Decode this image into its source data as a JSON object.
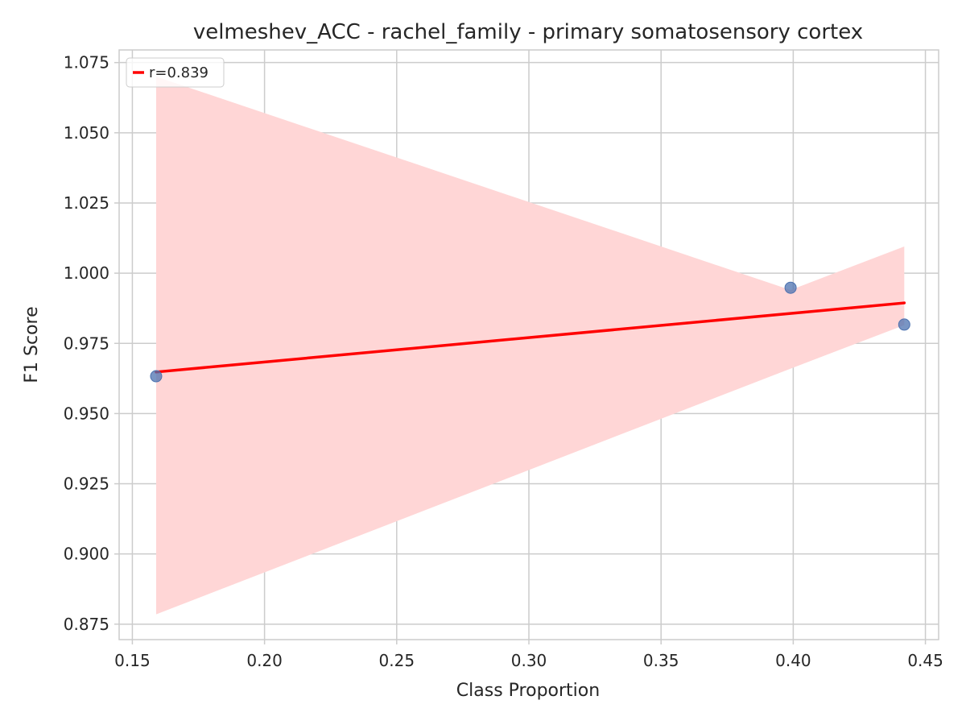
{
  "chart_data": {
    "type": "scatter",
    "title": "velmeshev_ACC - rachel_family - primary somatosensory cortex",
    "xlabel": "Class Proportion",
    "ylabel": "F1 Score",
    "xlim": [
      0.145,
      0.455
    ],
    "ylim": [
      0.8695,
      1.0795
    ],
    "xticks": [
      0.15,
      0.2,
      0.25,
      0.3,
      0.35,
      0.4,
      0.45
    ],
    "xtick_labels": [
      "0.15",
      "0.20",
      "0.25",
      "0.30",
      "0.35",
      "0.40",
      "0.45"
    ],
    "yticks": [
      0.875,
      0.9,
      0.925,
      0.95,
      0.975,
      1.0,
      1.025,
      1.05,
      1.075
    ],
    "ytick_labels": [
      "0.875",
      "0.900",
      "0.925",
      "0.950",
      "0.975",
      "1.000",
      "1.025",
      "1.050",
      "1.075"
    ],
    "grid": true,
    "points": {
      "x": [
        0.159,
        0.399,
        0.442
      ],
      "y": [
        0.9633,
        0.9948,
        0.9817
      ],
      "color": "#4c72b0"
    },
    "regression": {
      "x": [
        0.159,
        0.442
      ],
      "y": [
        0.9648,
        0.9894
      ],
      "color": "#ff0000",
      "ci_upper": [
        {
          "x": 0.159,
          "y": 1.07
        },
        {
          "x": 0.399,
          "y": 0.994
        },
        {
          "x": 0.442,
          "y": 1.0095
        }
      ],
      "ci_lower": [
        {
          "x": 0.159,
          "y": 0.8785
        },
        {
          "x": 0.399,
          "y": 0.966
        },
        {
          "x": 0.442,
          "y": 0.9815
        }
      ],
      "ci_color": "#ffd6d6"
    },
    "legend": {
      "position": "top-left",
      "entries": [
        {
          "label": "r=0.839",
          "color": "#ff0000"
        }
      ]
    }
  }
}
